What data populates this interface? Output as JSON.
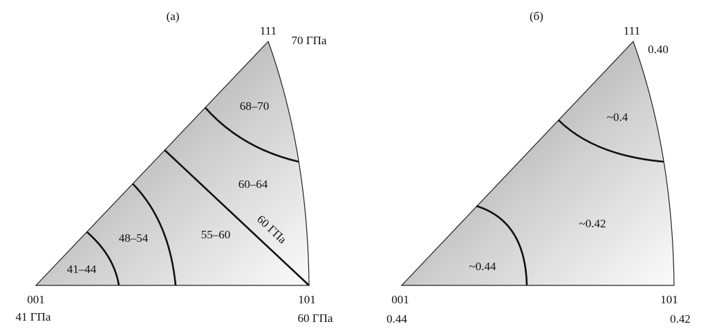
{
  "panels": [
    {
      "title": "(а)",
      "corners": {
        "top": {
          "index": "111",
          "value": "70 ГПа"
        },
        "left": {
          "index": "001",
          "value": "41 ГПа"
        },
        "right": {
          "index": "101",
          "value": "60 ГПа"
        }
      },
      "regions": [
        "41–44",
        "48–54",
        "55–60",
        "60–64",
        "68–70"
      ],
      "boundary_label": "60 ГПа"
    },
    {
      "title": "(б)",
      "corners": {
        "top": {
          "index": "111",
          "value": "0.40"
        },
        "left": {
          "index": "001",
          "value": "0.44"
        },
        "right": {
          "index": "101",
          "value": "0.42"
        }
      },
      "regions": [
        "~0.44",
        "~0.42",
        "~0.4"
      ]
    }
  ]
}
